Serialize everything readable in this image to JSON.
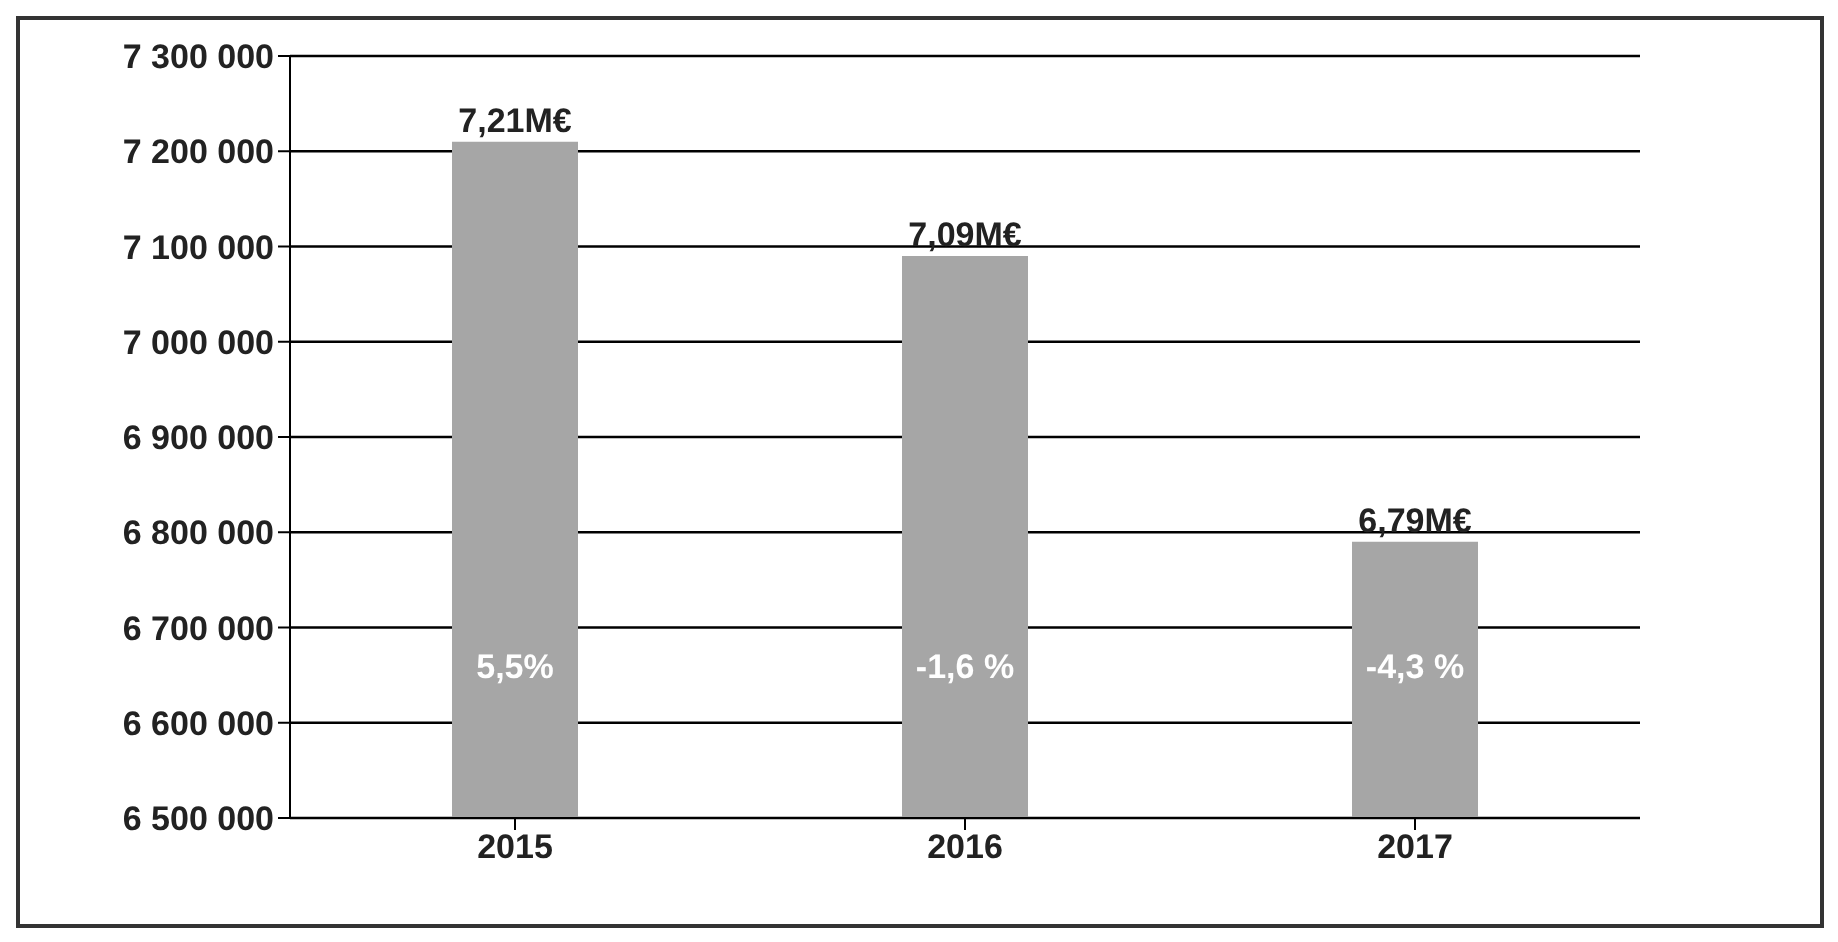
{
  "chart_data": {
    "type": "bar",
    "categories": [
      "2015",
      "2016",
      "2017"
    ],
    "values": [
      7210000,
      7090000,
      6790000
    ],
    "value_labels": [
      "7,21M€",
      "7,09M€",
      "6,79M€"
    ],
    "color": "#a6a6a6",
    "ylim": [
      6500000,
      7300000
    ],
    "yticks": [
      {
        "value": 6500000,
        "label": "6 500 000"
      },
      {
        "value": 6600000,
        "label": "6 600 000"
      },
      {
        "value": 6700000,
        "label": "6 700 000"
      },
      {
        "value": 6800000,
        "label": "6 800 000"
      },
      {
        "value": 6900000,
        "label": "6 900 000"
      },
      {
        "value": 7000000,
        "label": "7 000 000"
      },
      {
        "value": 7100000,
        "label": "7 100 000"
      },
      {
        "value": 7200000,
        "label": "7 200 000"
      },
      {
        "value": 7300000,
        "label": "7 300 000"
      }
    ],
    "grid": "y",
    "legend": false,
    "annotations": [
      "5,5%",
      "-1,6 %",
      "-4,3 %"
    ]
  }
}
